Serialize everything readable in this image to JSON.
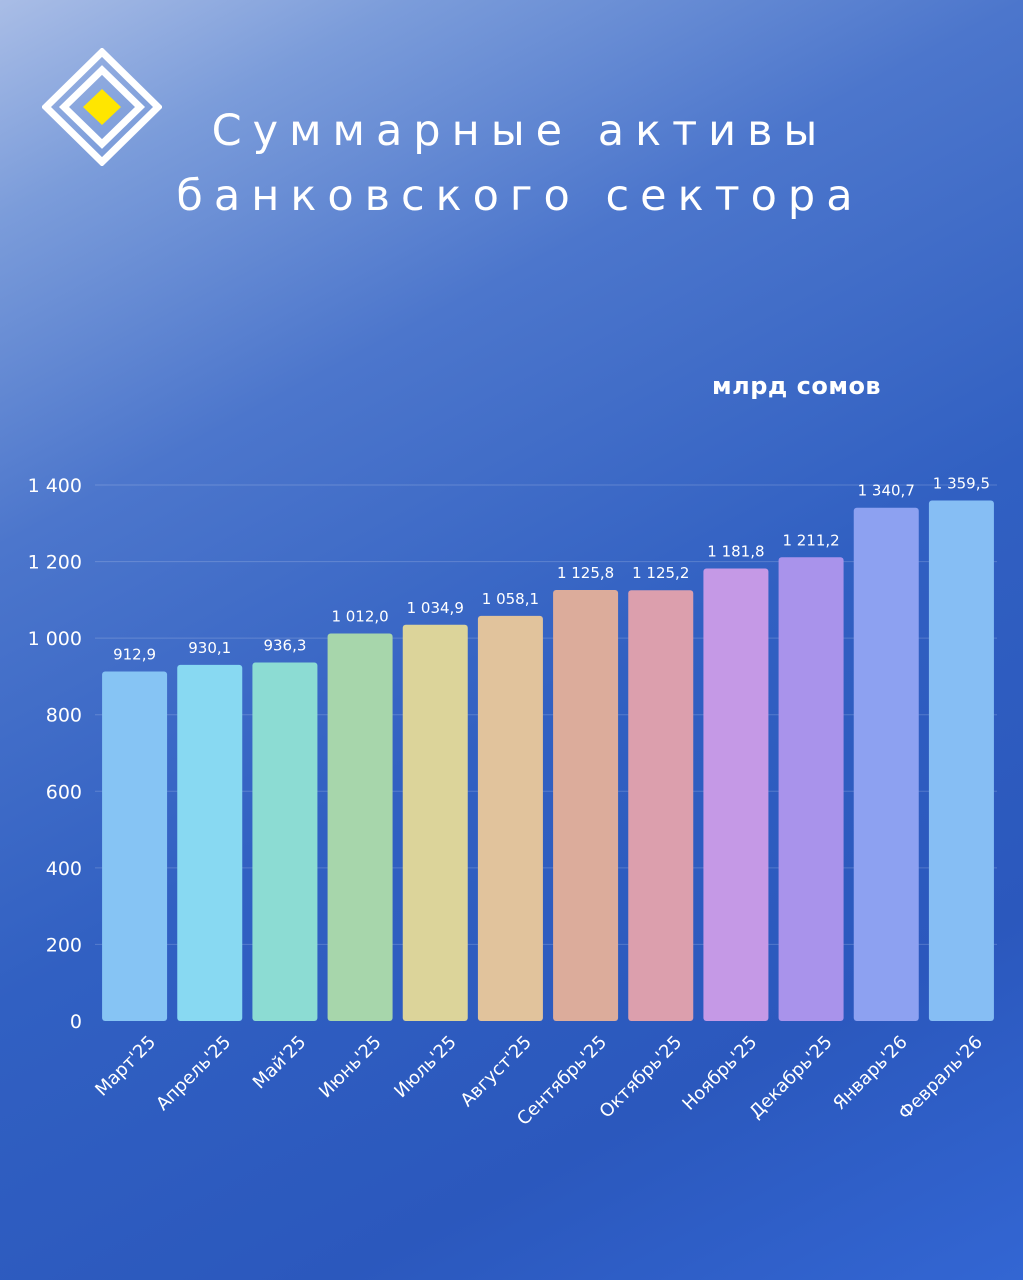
{
  "header": {
    "title_line1": "Суммарные активы",
    "title_line2": "банковского сектора",
    "logo_icon": "diamond-logo-icon"
  },
  "chart_data": {
    "type": "bar",
    "title": "Суммарные активы банковского сектора",
    "units": "млрд сомов",
    "categories": [
      "Март'25",
      "Апрель'25",
      "Май'25",
      "Июнь'25",
      "Июль'25",
      "Август'25",
      "Сентябрь'25",
      "Октябрь'25",
      "Ноябрь'25",
      "Декабрь'25",
      "Январь'26",
      "Февраль'26"
    ],
    "values": [
      912.9,
      930.1,
      936.3,
      1012.0,
      1034.9,
      1058.1,
      1125.8,
      1125.2,
      1181.8,
      1211.2,
      1340.7,
      1359.5
    ],
    "value_labels": [
      "912,9",
      "930,1",
      "936,3",
      "1 012,0",
      "1 034,9",
      "1 058,1",
      "1 125,8",
      "1 125,2",
      "1 181,8",
      "1 211,2",
      "1 340,7",
      "1 359,5"
    ],
    "ylim": [
      0,
      1400
    ],
    "yticks": [
      0,
      200,
      400,
      600,
      800,
      1000,
      1200,
      1400
    ],
    "ytick_labels": [
      "0",
      "200",
      "400",
      "600",
      "800",
      "1 000",
      "1 200",
      "1 400"
    ],
    "grid": true,
    "colors": [
      "#86c4f4",
      "#88d9f2",
      "#8cdcd3",
      "#a7d6ab",
      "#dcd49a",
      "#e1c39c",
      "#dcac9b",
      "#dc9fad",
      "#c599e6",
      "#a993eb",
      "#8da1f1",
      "#86bef4"
    ]
  }
}
